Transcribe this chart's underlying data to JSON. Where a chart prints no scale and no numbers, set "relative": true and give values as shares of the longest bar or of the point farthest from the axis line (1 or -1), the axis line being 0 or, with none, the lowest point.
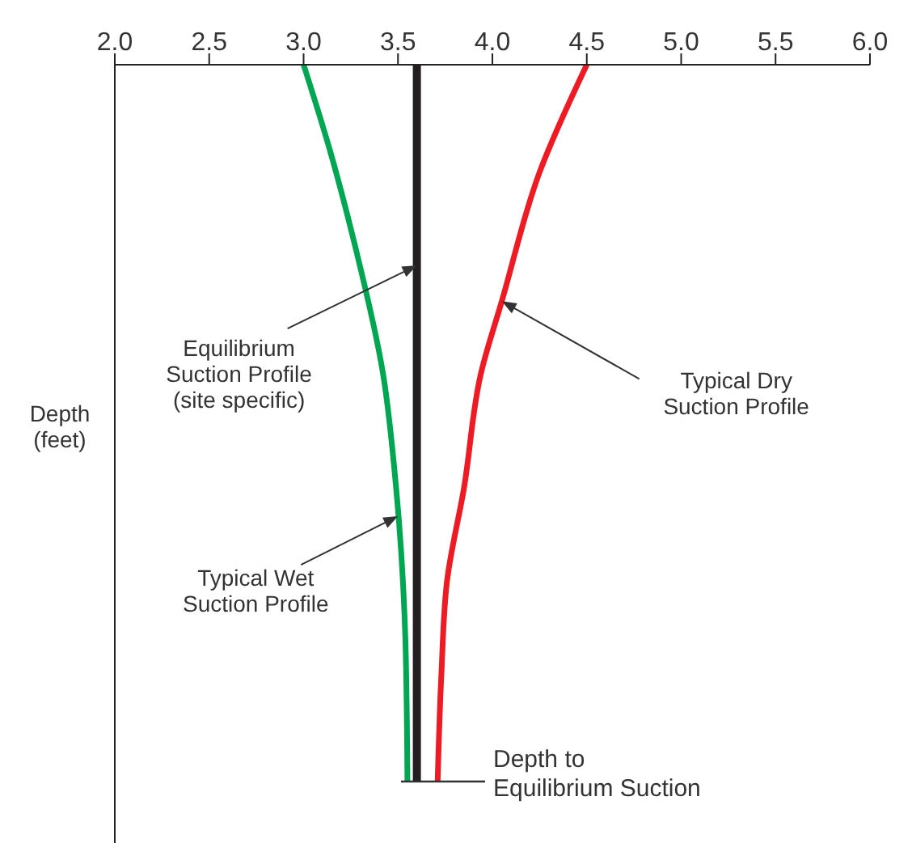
{
  "chart_data": {
    "type": "line",
    "ylabel": "Depth\n(feet)",
    "relative": true,
    "xlim": [
      2.0,
      6.0
    ],
    "xticks": [
      {
        "value": 2,
        "label": "2.0"
      },
      {
        "value": 2.5,
        "label": "2.5"
      },
      {
        "value": 3,
        "label": "3.0"
      },
      {
        "value": 3.5,
        "label": "3.5"
      },
      {
        "value": 4,
        "label": "4.0"
      },
      {
        "value": 4.5,
        "label": "4.5"
      },
      {
        "value": 5,
        "label": "5.0"
      },
      {
        "value": 5.5,
        "label": "5.5"
      },
      {
        "value": 6,
        "label": "6.0"
      }
    ],
    "marker": "none",
    "line_style": "solid",
    "series": [
      {
        "color": "#00a651",
        "x": [
          3.0,
          3.14,
          3.27,
          3.42,
          3.49,
          3.54,
          3.55
        ],
        "values": [
          0,
          -0.12,
          -0.25,
          -0.43,
          -0.59,
          -0.81,
          -1
        ]
      },
      {
        "color": "#231f20",
        "x": [
          3.6,
          3.6
        ],
        "values": [
          0,
          -1
        ]
      },
      {
        "color": "#ed1c24",
        "x": [
          4.5,
          4.25,
          4.05,
          3.94,
          3.85,
          3.76,
          3.73,
          3.71
        ],
        "values": [
          0,
          -0.15,
          -0.33,
          -0.43,
          -0.59,
          -0.72,
          -0.85,
          -1
        ]
      }
    ],
    "annotations": [
      {
        "text": "Equilibrium\nSuction Profile\n(site specific)",
        "x": 3.6,
        "y": -0.28
      },
      {
        "text": "Typical Dry\nSuction Profile",
        "x": 4.05,
        "y": -0.33
      },
      {
        "text": "Typical Wet\nSuction Profile",
        "x": 3.5,
        "y": -0.63
      },
      "Depth to\nEquilibrium Suction"
    ]
  }
}
